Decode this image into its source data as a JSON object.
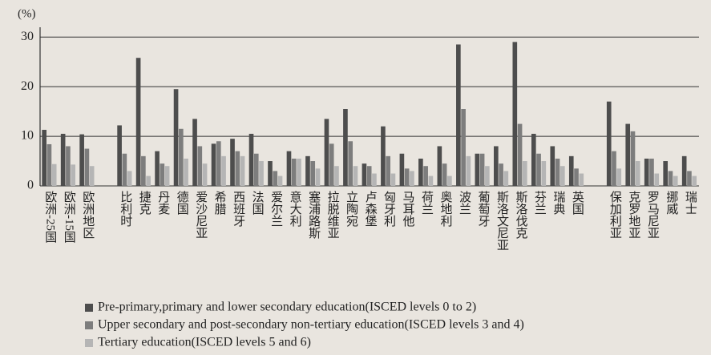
{
  "chart_data": {
    "type": "bar",
    "y_label": "(%)",
    "categories": [
      "欧洲-25国",
      "欧洲-15国",
      "欧洲地区",
      null,
      "比利时",
      "捷克",
      "丹麦",
      "德国",
      "爱沙尼亚",
      "希腊",
      "西班牙",
      "法国",
      "爱尔兰",
      "意大利",
      "塞浦路斯",
      "拉脱维亚",
      "立陶宛",
      "卢森堡",
      "匈牙利",
      "马耳他",
      "荷兰",
      "奥地利",
      "波兰",
      "葡萄牙",
      "斯洛文尼亚",
      "斯洛伐克",
      "芬兰",
      "瑞典",
      "英国",
      null,
      "保加利亚",
      "克罗地亚",
      "罗马尼亚",
      "挪威",
      "瑞士"
    ],
    "series": [
      {
        "name": "Pre-primary,primary and lower secondary education(ISCED levels 0 to 2)",
        "color": "#4d4d4d",
        "values": [
          11.3,
          10.5,
          10.4,
          null,
          12.2,
          25.8,
          7,
          19.5,
          13.5,
          8.5,
          9.5,
          10.5,
          5,
          7,
          6,
          13.5,
          15.5,
          4.5,
          12,
          6.5,
          5.5,
          8,
          28.5,
          6.5,
          8,
          29,
          10.5,
          8,
          6,
          null,
          17,
          12.5,
          5.5,
          5,
          6
        ]
      },
      {
        "name": "Upper secondary and post-secondary non-tertiary education(ISCED levels 3 and 4)",
        "color": "#7d7d7d",
        "values": [
          8.4,
          8,
          7.5,
          null,
          6.5,
          6,
          4.5,
          11.5,
          8,
          9,
          7,
          6.5,
          3,
          5.5,
          5,
          8.5,
          9,
          4,
          6,
          3.5,
          4,
          4.5,
          15.5,
          6.5,
          4.5,
          12.5,
          6.5,
          5.5,
          3.5,
          null,
          7,
          11,
          5.5,
          3,
          3
        ]
      },
      {
        "name": "Tertiary education(ISCED levels 5 and 6)",
        "color": "#b5b5b5",
        "values": [
          4.4,
          4.3,
          4,
          null,
          3,
          2,
          4,
          5.5,
          4.5,
          6,
          6,
          5,
          2,
          5.5,
          3.5,
          4,
          4,
          2.5,
          2.5,
          3,
          2,
          2,
          6,
          4,
          3,
          5,
          5,
          4,
          2.5,
          null,
          3.5,
          5,
          2.5,
          2,
          2
        ]
      }
    ],
    "ylim": [
      0,
      31
    ],
    "yticks": [
      0,
      10,
      20,
      30
    ],
    "grid": true
  }
}
